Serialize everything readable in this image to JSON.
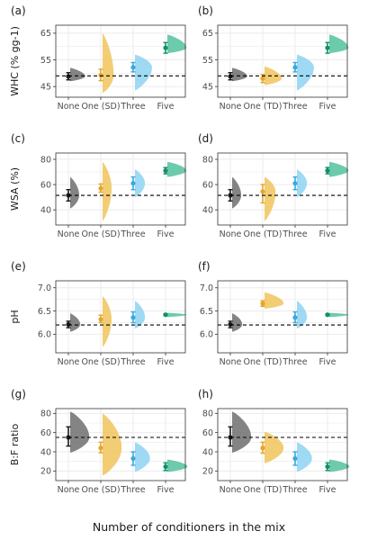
{
  "figure": {
    "xlabel": "Number of conditioners in the mix"
  },
  "colors": {
    "None": "#6f6f6f",
    "One": "#f0c45a",
    "Three": "#8ed3f3",
    "Five": "#53c29f",
    "None_pt": "#1a1a1a",
    "One_pt": "#e5a52a",
    "Three_pt": "#3aa8dc",
    "Five_pt": "#128f6a",
    "grid": "#ebebeb",
    "refline": "#000000"
  },
  "chart_data": [
    {
      "panel": "(a)",
      "type": "violin-halfeye",
      "ylabel": "WHC (% gg-1)",
      "categories": [
        "None",
        "One (SD)",
        "Three",
        "Five"
      ],
      "yticks": [
        45,
        55,
        65
      ],
      "ylim": [
        41,
        68
      ],
      "grid": true,
      "refline": 49.0,
      "series": [
        {
          "cat": "None",
          "mean": 48.8,
          "lo": 47.5,
          "hi": 50.2,
          "dmin": 47.0,
          "dmax": 52.0,
          "width": 0.75
        },
        {
          "cat": "One (SD)",
          "mean": 49.2,
          "lo": 47.2,
          "hi": 51.5,
          "dmin": 42.5,
          "dmax": 65.0,
          "width": 0.55
        },
        {
          "cat": "Three",
          "mean": 52.2,
          "lo": 50.5,
          "hi": 54.0,
          "dmin": 43.5,
          "dmax": 57.0,
          "width": 0.85
        },
        {
          "cat": "Five",
          "mean": 59.5,
          "lo": 57.5,
          "hi": 61.5,
          "dmin": 57.5,
          "dmax": 64.5,
          "width": 0.95
        }
      ]
    },
    {
      "panel": "(b)",
      "type": "violin-halfeye",
      "ylabel": "",
      "categories": [
        "None",
        "One (TD)",
        "Three",
        "Five"
      ],
      "yticks": [
        45,
        55,
        65
      ],
      "ylim": [
        41,
        68
      ],
      "grid": true,
      "refline": 49.0,
      "series": [
        {
          "cat": "None",
          "mean": 48.8,
          "lo": 47.5,
          "hi": 50.2,
          "dmin": 47.0,
          "dmax": 52.0,
          "width": 0.75
        },
        {
          "cat": "One (TD)",
          "mean": 48.0,
          "lo": 46.5,
          "hi": 49.5,
          "dmin": 45.5,
          "dmax": 52.5,
          "width": 0.85
        },
        {
          "cat": "Three",
          "mean": 52.2,
          "lo": 50.5,
          "hi": 54.0,
          "dmin": 43.5,
          "dmax": 57.0,
          "width": 0.85
        },
        {
          "cat": "Five",
          "mean": 59.5,
          "lo": 57.5,
          "hi": 61.5,
          "dmin": 57.5,
          "dmax": 64.5,
          "width": 0.95
        }
      ]
    },
    {
      "panel": "(c)",
      "type": "violin-halfeye",
      "ylabel": "WSA (%)",
      "categories": [
        "None",
        "One (SD)",
        "Three",
        "Five"
      ],
      "yticks": [
        40,
        60,
        80
      ],
      "ylim": [
        28,
        85
      ],
      "grid": true,
      "refline": 51.5,
      "series": [
        {
          "cat": "None",
          "mean": 51.5,
          "lo": 47.0,
          "hi": 56.0,
          "dmin": 41.0,
          "dmax": 66.0,
          "width": 0.45
        },
        {
          "cat": "One (SD)",
          "mean": 57.0,
          "lo": 54.0,
          "hi": 60.5,
          "dmin": 31.0,
          "dmax": 78.0,
          "width": 0.45
        },
        {
          "cat": "Three",
          "mean": 61.0,
          "lo": 56.0,
          "hi": 66.0,
          "dmin": 50.0,
          "dmax": 72.0,
          "width": 0.5
        },
        {
          "cat": "Five",
          "mean": 71.0,
          "lo": 68.5,
          "hi": 73.5,
          "dmin": 66.0,
          "dmax": 78.0,
          "width": 0.95
        }
      ]
    },
    {
      "panel": "(d)",
      "type": "violin-halfeye",
      "ylabel": "",
      "categories": [
        "None",
        "One (TD)",
        "Three",
        "Five"
      ],
      "yticks": [
        40,
        60,
        80
      ],
      "ylim": [
        28,
        85
      ],
      "grid": true,
      "refline": 51.5,
      "series": [
        {
          "cat": "None",
          "mean": 51.5,
          "lo": 47.0,
          "hi": 56.0,
          "dmin": 41.0,
          "dmax": 66.0,
          "width": 0.45
        },
        {
          "cat": "One (TD)",
          "mean": 54.5,
          "lo": 45.5,
          "hi": 60.0,
          "dmin": 31.0,
          "dmax": 66.0,
          "width": 0.55
        },
        {
          "cat": "Three",
          "mean": 61.0,
          "lo": 56.0,
          "hi": 66.0,
          "dmin": 50.0,
          "dmax": 72.0,
          "width": 0.5
        },
        {
          "cat": "Five",
          "mean": 71.0,
          "lo": 68.5,
          "hi": 73.5,
          "dmin": 66.0,
          "dmax": 78.0,
          "width": 0.95
        }
      ]
    },
    {
      "panel": "(e)",
      "type": "violin-halfeye",
      "ylabel": "pH",
      "categories": [
        "None",
        "One (SD)",
        "Three",
        "Five"
      ],
      "yticks": [
        6.0,
        6.5,
        7.0
      ],
      "ylim": [
        5.6,
        7.15
      ],
      "grid": true,
      "refline": 6.2,
      "series": [
        {
          "cat": "None",
          "mean": 6.21,
          "lo": 6.14,
          "hi": 6.28,
          "dmin": 6.05,
          "dmax": 6.45,
          "width": 0.5
        },
        {
          "cat": "One (SD)",
          "mean": 6.32,
          "lo": 6.25,
          "hi": 6.41,
          "dmin": 5.72,
          "dmax": 6.82,
          "width": 0.45
        },
        {
          "cat": "Three",
          "mean": 6.36,
          "lo": 6.25,
          "hi": 6.48,
          "dmin": 6.12,
          "dmax": 6.72,
          "width": 0.5
        },
        {
          "cat": "Five",
          "mean": 6.42,
          "lo": 6.4,
          "hi": 6.44,
          "dmin": 6.37,
          "dmax": 6.46,
          "width": 0.95
        }
      ]
    },
    {
      "panel": "(f)",
      "type": "violin-halfeye",
      "ylabel": "",
      "categories": [
        "None",
        "One (TD)",
        "Three",
        "Five"
      ],
      "yticks": [
        6.0,
        6.5,
        7.0
      ],
      "ylim": [
        5.6,
        7.15
      ],
      "grid": true,
      "refline": 6.2,
      "series": [
        {
          "cat": "None",
          "mean": 6.21,
          "lo": 6.14,
          "hi": 6.28,
          "dmin": 6.05,
          "dmax": 6.45,
          "width": 0.5
        },
        {
          "cat": "One (TD)",
          "mean": 6.66,
          "lo": 6.6,
          "hi": 6.72,
          "dmin": 6.55,
          "dmax": 6.9,
          "width": 0.95
        },
        {
          "cat": "Three",
          "mean": 6.36,
          "lo": 6.25,
          "hi": 6.48,
          "dmin": 6.12,
          "dmax": 6.72,
          "width": 0.5
        },
        {
          "cat": "Five",
          "mean": 6.42,
          "lo": 6.4,
          "hi": 6.44,
          "dmin": 6.37,
          "dmax": 6.46,
          "width": 0.95
        }
      ]
    },
    {
      "panel": "(g)",
      "type": "violin-halfeye",
      "ylabel": "B:F ratio",
      "categories": [
        "None",
        "One (SD)",
        "Three",
        "Five"
      ],
      "yticks": [
        20,
        40,
        60,
        80
      ],
      "ylim": [
        10,
        85
      ],
      "grid": true,
      "refline": 55.0,
      "series": [
        {
          "cat": "None",
          "mean": 55.0,
          "lo": 46.0,
          "hi": 66.0,
          "dmin": 39.0,
          "dmax": 82.0,
          "width": 0.95
        },
        {
          "cat": "One (SD)",
          "mean": 44.0,
          "lo": 39.0,
          "hi": 50.0,
          "dmin": 15.0,
          "dmax": 80.0,
          "width": 0.95
        },
        {
          "cat": "Three",
          "mean": 33.0,
          "lo": 26.0,
          "hi": 40.0,
          "dmin": 19.0,
          "dmax": 50.0,
          "width": 0.75
        },
        {
          "cat": "Five",
          "mean": 24.5,
          "lo": 20.5,
          "hi": 28.5,
          "dmin": 19.0,
          "dmax": 32.0,
          "width": 1.0
        }
      ]
    },
    {
      "panel": "(h)",
      "type": "violin-halfeye",
      "ylabel": "",
      "categories": [
        "None",
        "One (TD)",
        "Three",
        "Five"
      ],
      "yticks": [
        20,
        40,
        60,
        80
      ],
      "ylim": [
        10,
        85
      ],
      "grid": true,
      "refline": 55.0,
      "series": [
        {
          "cat": "None",
          "mean": 55.0,
          "lo": 46.0,
          "hi": 66.0,
          "dmin": 39.0,
          "dmax": 82.0,
          "width": 0.95
        },
        {
          "cat": "One (TD)",
          "mean": 44.0,
          "lo": 38.5,
          "hi": 50.0,
          "dmin": 28.0,
          "dmax": 61.0,
          "width": 0.95
        },
        {
          "cat": "Three",
          "mean": 33.0,
          "lo": 26.0,
          "hi": 40.0,
          "dmin": 19.0,
          "dmax": 50.0,
          "width": 0.75
        },
        {
          "cat": "Five",
          "mean": 24.5,
          "lo": 20.5,
          "hi": 28.5,
          "dmin": 19.0,
          "dmax": 32.0,
          "width": 1.0
        }
      ]
    }
  ]
}
